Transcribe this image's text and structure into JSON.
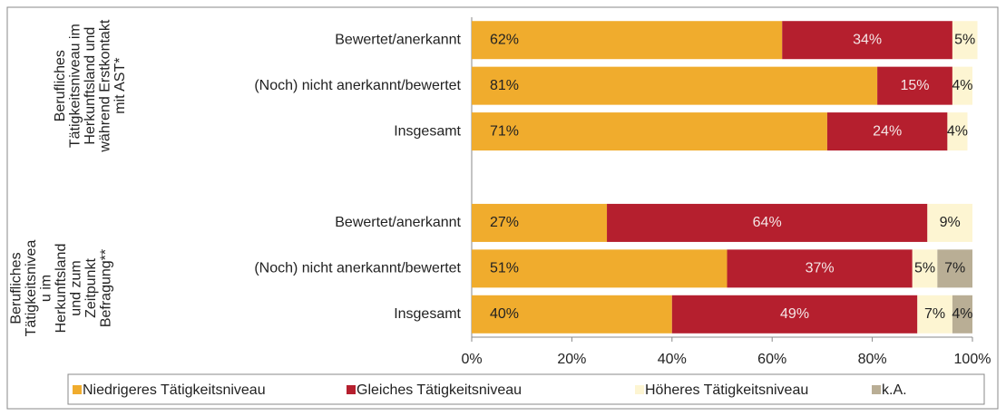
{
  "chart_data": {
    "type": "stacked-bar-horizontal",
    "group_labels": [
      [
        "Berufliches",
        "Tätigkeitsniveau im",
        "Herkunftsland und",
        "während Erstkontakt",
        "mit AST*"
      ],
      [
        "Berufliches",
        "Tätigkeitsnivea",
        "u im",
        "Herkunftsland",
        "und zum",
        "Zeitpunkt",
        "Befragung**"
      ]
    ],
    "categories": [
      "Bewertet/anerkannt",
      "(Noch) nicht anerkannt/bewertet",
      "Insgesamt",
      null,
      "Bewertet/anerkannt",
      "(Noch) nicht anerkannt/bewertet",
      "Insgesamt"
    ],
    "series": [
      {
        "name": "Niedrigeres Tätigkeitsniveau",
        "color": "#f0ac2d",
        "values": [
          62,
          81,
          71,
          null,
          27,
          51,
          40
        ],
        "value_labels": [
          "62%",
          "81%",
          "71%",
          null,
          "27%",
          "51%",
          "40%"
        ]
      },
      {
        "name": "Gleiches Tätigkeitsniveau",
        "color": "#b51f2e",
        "values": [
          34,
          15,
          24,
          null,
          64,
          37,
          49
        ],
        "value_labels": [
          "34%",
          "15%",
          "24%",
          null,
          "64%",
          "37%",
          "49%"
        ]
      },
      {
        "name": "Höheres Tätigkeitsniveau",
        "color": "#fdf5d2",
        "values": [
          5,
          4,
          4,
          null,
          9,
          5,
          7
        ],
        "value_labels": [
          "5%",
          "4%",
          "4%",
          null,
          "9%",
          "5%",
          "7%"
        ]
      },
      {
        "name": "k.A.",
        "color": "#b9ae95",
        "values": [
          null,
          null,
          null,
          null,
          null,
          7,
          4
        ],
        "value_labels": [
          null,
          null,
          null,
          null,
          null,
          "7%",
          "4%"
        ]
      }
    ],
    "xlim": [
      0,
      100
    ],
    "xticks": [
      {
        "value": 0,
        "label": "0%"
      },
      {
        "value": 20,
        "label": "20%"
      },
      {
        "value": 40,
        "label": "40%"
      },
      {
        "value": 60,
        "label": "60%"
      },
      {
        "value": 80,
        "label": "80%"
      },
      {
        "value": 100,
        "label": "100%"
      }
    ]
  }
}
